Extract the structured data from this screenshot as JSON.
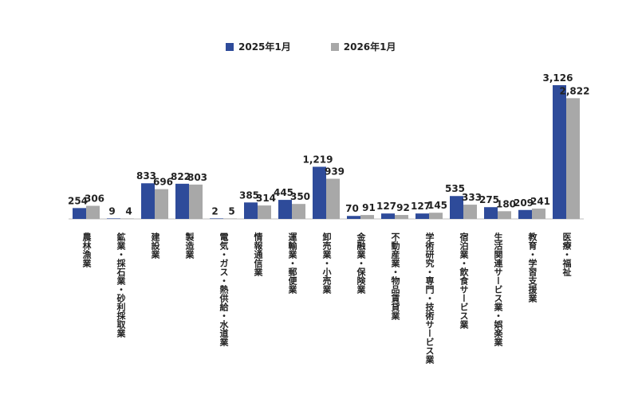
{
  "colors": {
    "series1": "#2E4B9A",
    "series2": "#A8A8A8"
  },
  "chart_data": {
    "type": "bar",
    "title": "",
    "xlabel": "",
    "ylabel": "",
    "ylim": [
      0,
      3300
    ],
    "grid": false,
    "legend_position": "top",
    "categories": [
      "農林漁業",
      "鉱業・採石業・砂利採取業",
      "建設業",
      "製造業",
      "電気・ガス・熱供給・水道業",
      "情報通信業",
      "運輸業・郵便業",
      "卸売業・小売業",
      "金融業・保険業",
      "不動産業・物品賃貸業",
      "学術研究・専門・技術サービス業",
      "宿泊業・飲食サービス業",
      "生活関連サービス業・娯楽業",
      "教育・学習支援業",
      "医療・福祉"
    ],
    "series": [
      {
        "name": "2025年1月",
        "values": [
          254,
          9,
          833,
          822,
          2,
          385,
          445,
          1219,
          70,
          127,
          127,
          535,
          275,
          209,
          3126
        ],
        "labels": [
          "254",
          "9",
          "833",
          "822",
          "2",
          "385",
          "445",
          "1,219",
          "70",
          "127",
          "127",
          "535",
          "275",
          "209",
          "3,126"
        ]
      },
      {
        "name": "2026年1月",
        "values": [
          306,
          4,
          696,
          803,
          5,
          314,
          350,
          939,
          91,
          92,
          145,
          333,
          180,
          241,
          2822
        ],
        "labels": [
          "306",
          "4",
          "696",
          "803",
          "5",
          "314",
          "350",
          "939",
          "91",
          "92",
          "145",
          "333",
          "180",
          "241",
          "2,822"
        ]
      }
    ]
  }
}
